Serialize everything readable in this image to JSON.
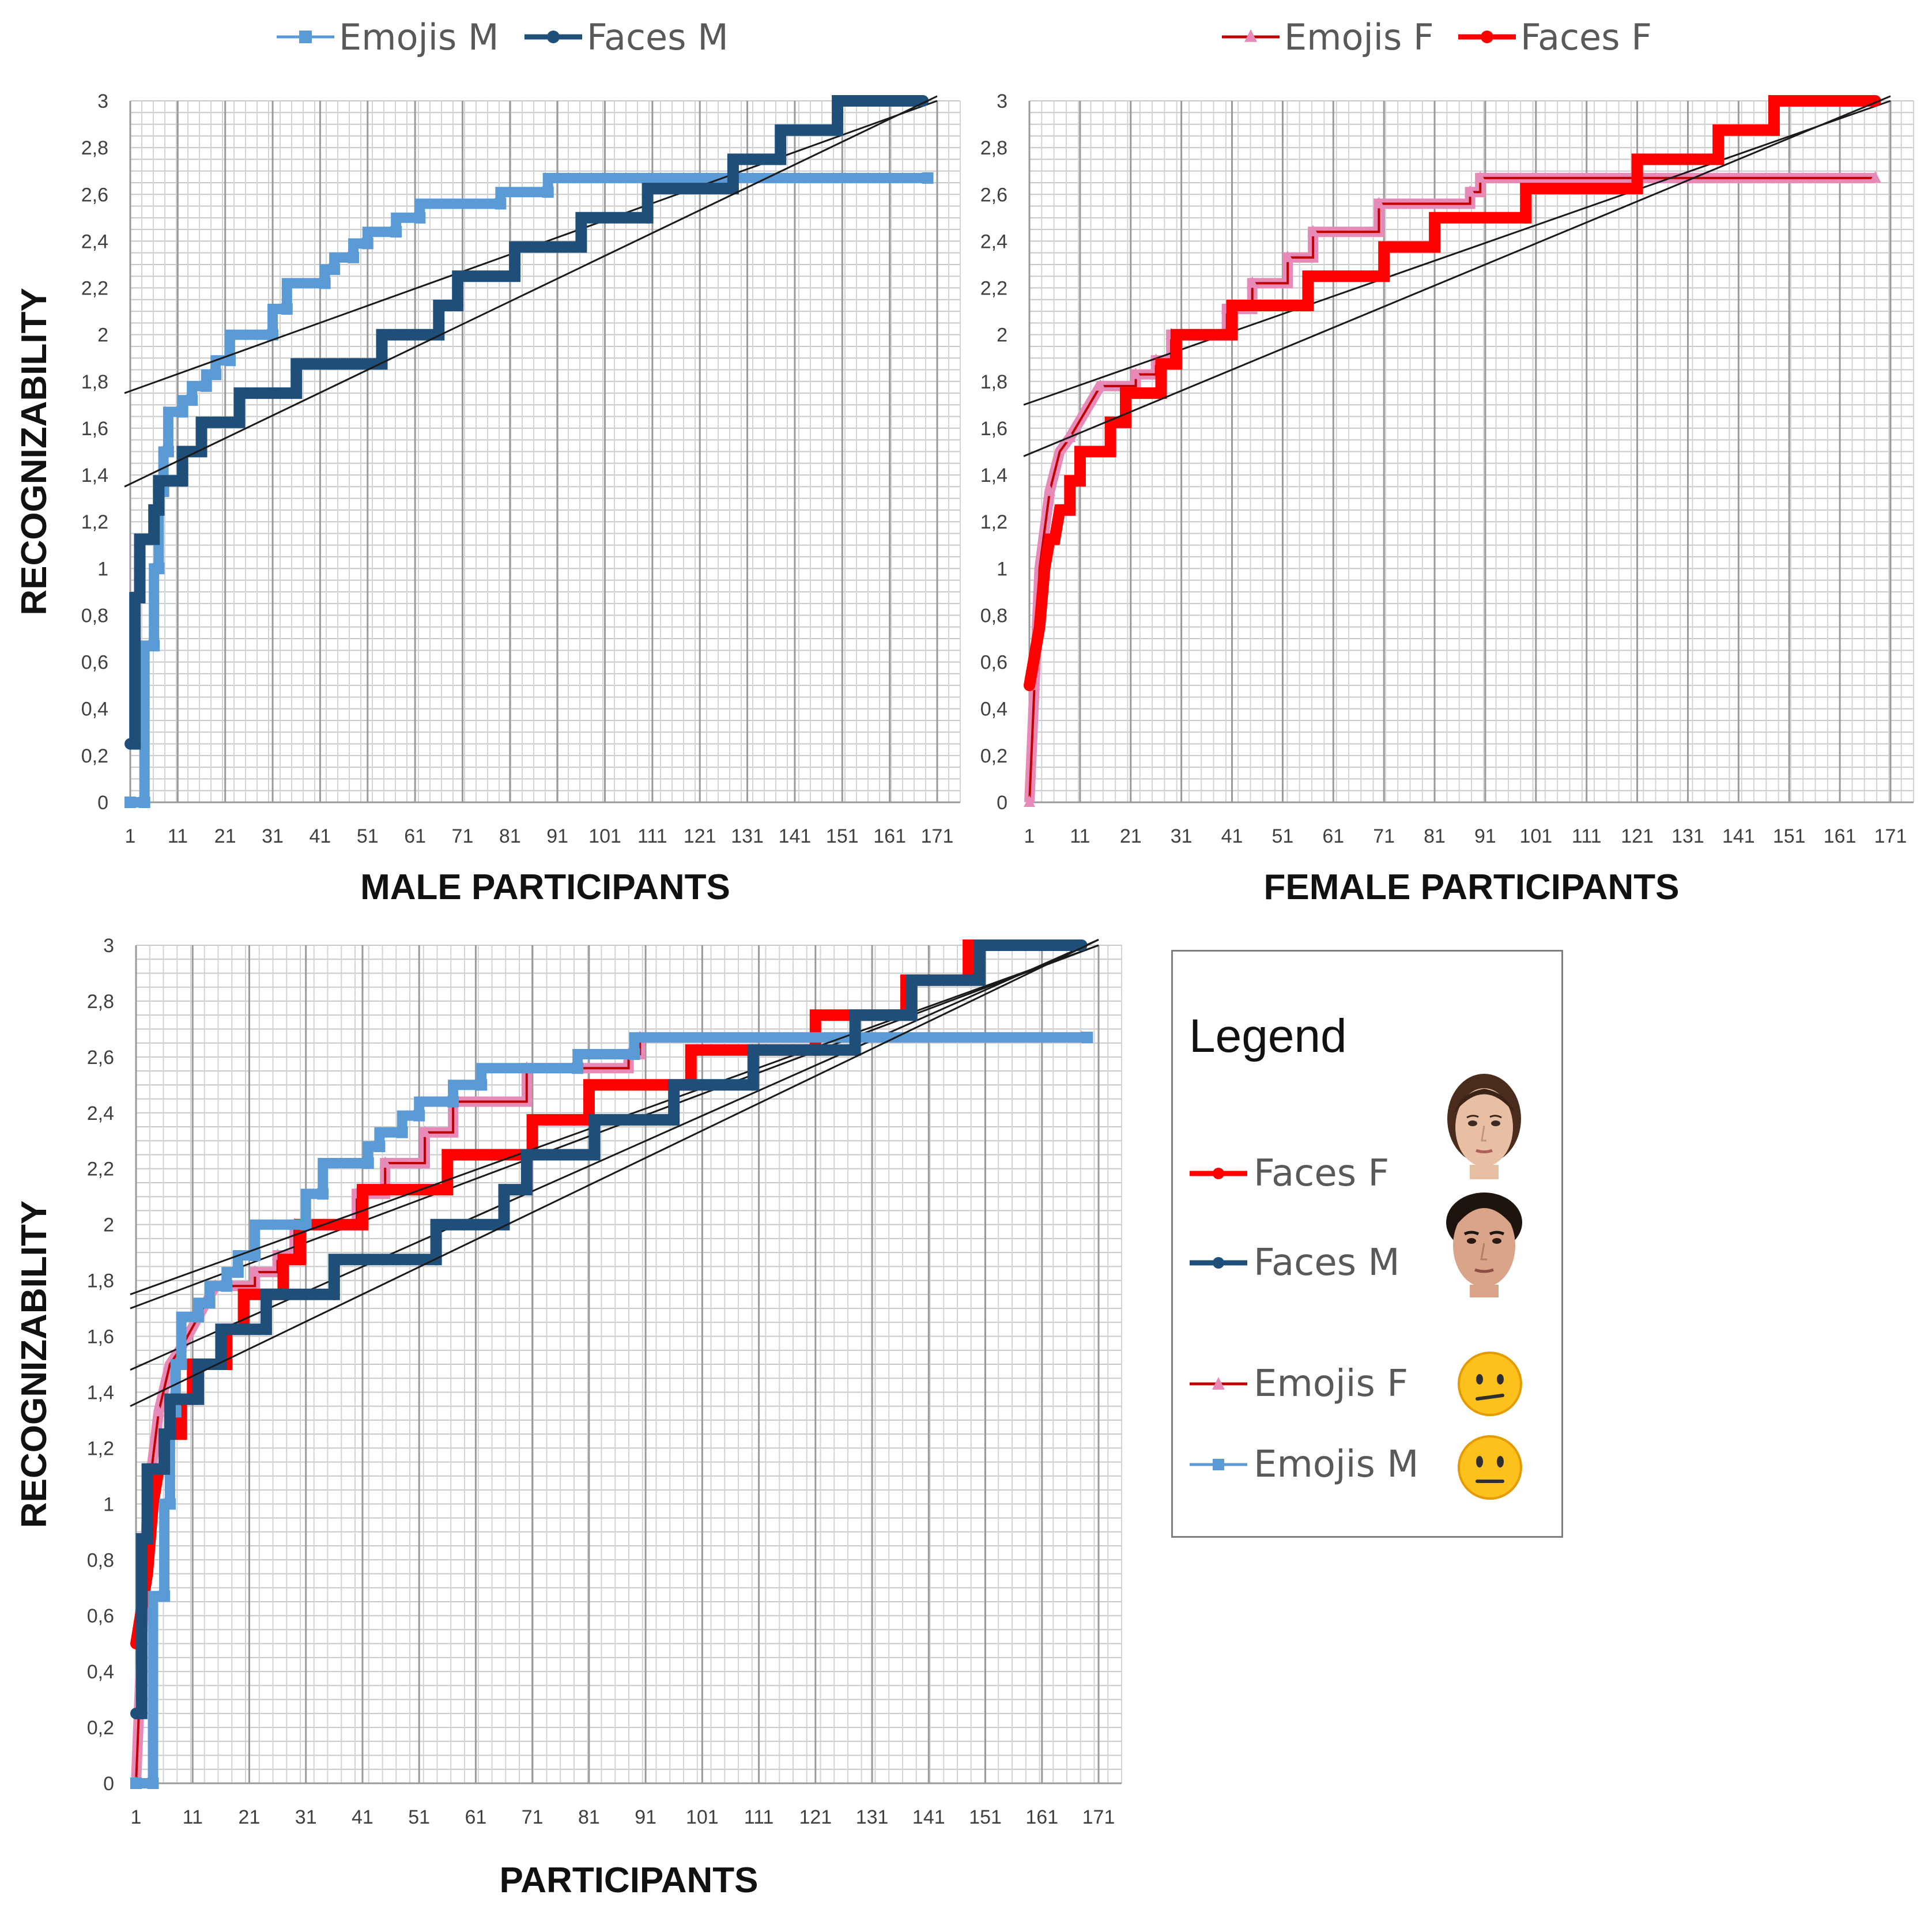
{
  "chart_data": [
    {
      "type": "line",
      "id": "male",
      "xlabel": "MALE PARTICIPANTS",
      "ylabel": "RECOGNIZABILITY",
      "ylim": [
        0,
        3
      ],
      "xlim": [
        1,
        171
      ],
      "yticks": [
        "0",
        "0,2",
        "0,4",
        "0,6",
        "0,8",
        "1",
        "1,2",
        "1,4",
        "1,6",
        "1,8",
        "2",
        "2,2",
        "2,4",
        "2,6",
        "2,8",
        "3"
      ],
      "xticks": [
        "1",
        "11",
        "21",
        "31",
        "41",
        "51",
        "61",
        "71",
        "81",
        "91",
        "101",
        "111",
        "121",
        "131",
        "141",
        "151",
        "161",
        "171"
      ],
      "legend": [
        "Emojis M",
        "Faces M"
      ],
      "series": [
        {
          "name": "Emojis M",
          "color": "#5b9bd5",
          "marker": "square",
          "points": [
            [
              1,
              0
            ],
            [
              4,
              0
            ],
            [
              4,
              0.67
            ],
            [
              6,
              0.67
            ],
            [
              6,
              1
            ],
            [
              7,
              1
            ],
            [
              7,
              1.33
            ],
            [
              8,
              1.33
            ],
            [
              8,
              1.5
            ],
            [
              9,
              1.5
            ],
            [
              9,
              1.67
            ],
            [
              12,
              1.67
            ],
            [
              12,
              1.72
            ],
            [
              14,
              1.72
            ],
            [
              14,
              1.78
            ],
            [
              17,
              1.78
            ],
            [
              17,
              1.83
            ],
            [
              19,
              1.83
            ],
            [
              19,
              1.89
            ],
            [
              22,
              1.89
            ],
            [
              22,
              2
            ],
            [
              31,
              2
            ],
            [
              31,
              2.11
            ],
            [
              34,
              2.11
            ],
            [
              34,
              2.22
            ],
            [
              42,
              2.22
            ],
            [
              42,
              2.28
            ],
            [
              44,
              2.28
            ],
            [
              44,
              2.33
            ],
            [
              48,
              2.33
            ],
            [
              48,
              2.39
            ],
            [
              51,
              2.39
            ],
            [
              51,
              2.44
            ],
            [
              57,
              2.44
            ],
            [
              57,
              2.5
            ],
            [
              62,
              2.5
            ],
            [
              62,
              2.56
            ],
            [
              79,
              2.56
            ],
            [
              79,
              2.61
            ],
            [
              89,
              2.61
            ],
            [
              89,
              2.67
            ],
            [
              169,
              2.67
            ]
          ],
          "trend": [
            [
              1,
              1.75
            ],
            [
              171,
              3.0
            ]
          ]
        },
        {
          "name": "Faces M",
          "color": "#1f4e79",
          "marker": "circle",
          "points": [
            [
              1,
              0.25
            ],
            [
              2,
              0.25
            ],
            [
              2,
              0.875
            ],
            [
              3,
              0.875
            ],
            [
              3,
              1.125
            ],
            [
              6,
              1.125
            ],
            [
              6,
              1.25
            ],
            [
              7,
              1.25
            ],
            [
              7,
              1.375
            ],
            [
              12,
              1.375
            ],
            [
              12,
              1.5
            ],
            [
              16,
              1.5
            ],
            [
              16,
              1.625
            ],
            [
              24,
              1.625
            ],
            [
              24,
              1.75
            ],
            [
              36,
              1.75
            ],
            [
              36,
              1.875
            ],
            [
              54,
              1.875
            ],
            [
              54,
              2.0
            ],
            [
              66,
              2.0
            ],
            [
              66,
              2.125
            ],
            [
              70,
              2.125
            ],
            [
              70,
              2.25
            ],
            [
              82,
              2.25
            ],
            [
              82,
              2.375
            ],
            [
              96,
              2.375
            ],
            [
              96,
              2.5
            ],
            [
              110,
              2.5
            ],
            [
              110,
              2.625
            ],
            [
              128,
              2.625
            ],
            [
              128,
              2.75
            ],
            [
              138,
              2.75
            ],
            [
              138,
              2.875
            ],
            [
              150,
              2.875
            ],
            [
              150,
              3.0
            ],
            [
              168,
              3.0
            ]
          ],
          "trend": [
            [
              1,
              1.35
            ],
            [
              171,
              3.02
            ]
          ]
        }
      ]
    },
    {
      "type": "line",
      "id": "female",
      "xlabel": "FEMALE PARTICIPANTS",
      "ylabel": "",
      "ylim": [
        0,
        3
      ],
      "xlim": [
        1,
        171
      ],
      "yticks": [
        "0",
        "0,2",
        "0,4",
        "0,6",
        "0,8",
        "1",
        "1,2",
        "1,4",
        "1,6",
        "1,8",
        "2",
        "2,2",
        "2,4",
        "2,6",
        "2,8",
        "3"
      ],
      "xticks": [
        "1",
        "11",
        "21",
        "31",
        "41",
        "51",
        "61",
        "71",
        "81",
        "91",
        "101",
        "111",
        "121",
        "131",
        "141",
        "151",
        "161",
        "171"
      ],
      "legend": [
        "Emojis F",
        "Faces F"
      ],
      "series": [
        {
          "name": "Emojis F",
          "color": "#e88ab8",
          "line_color": "#c00000",
          "marker": "triangle",
          "points": [
            [
              1,
              0
            ],
            [
              2,
              0.5
            ],
            [
              3,
              1
            ],
            [
              5,
              1.33
            ],
            [
              7,
              1.5
            ],
            [
              9,
              1.56
            ],
            [
              12,
              1.67
            ],
            [
              15,
              1.78
            ],
            [
              22,
              1.78
            ],
            [
              22,
              1.83
            ],
            [
              26,
              1.83
            ],
            [
              26,
              1.89
            ],
            [
              29,
              1.89
            ],
            [
              29,
              2
            ],
            [
              40,
              2
            ],
            [
              40,
              2.11
            ],
            [
              45,
              2.11
            ],
            [
              45,
              2.22
            ],
            [
              52,
              2.22
            ],
            [
              52,
              2.33
            ],
            [
              57,
              2.33
            ],
            [
              57,
              2.44
            ],
            [
              70,
              2.44
            ],
            [
              70,
              2.56
            ],
            [
              88,
              2.56
            ],
            [
              88,
              2.61
            ],
            [
              90,
              2.61
            ],
            [
              90,
              2.67
            ],
            [
              168,
              2.67
            ]
          ],
          "trend": [
            [
              1,
              1.7
            ],
            [
              171,
              3.0
            ]
          ]
        },
        {
          "name": "Faces F",
          "color": "#ff0000",
          "line_color": "#ff0000",
          "marker": "circle",
          "points": [
            [
              1,
              0.5
            ],
            [
              2,
              0.625
            ],
            [
              3,
              0.75
            ],
            [
              4,
              1.0
            ],
            [
              5,
              1.125
            ],
            [
              6,
              1.125
            ],
            [
              7,
              1.25
            ],
            [
              9,
              1.25
            ],
            [
              9,
              1.375
            ],
            [
              11,
              1.375
            ],
            [
              11,
              1.5
            ],
            [
              17,
              1.5
            ],
            [
              17,
              1.625
            ],
            [
              20,
              1.625
            ],
            [
              20,
              1.75
            ],
            [
              27,
              1.75
            ],
            [
              27,
              1.875
            ],
            [
              30,
              1.875
            ],
            [
              30,
              2.0
            ],
            [
              41,
              2.0
            ],
            [
              41,
              2.125
            ],
            [
              56,
              2.125
            ],
            [
              56,
              2.25
            ],
            [
              71,
              2.25
            ],
            [
              71,
              2.375
            ],
            [
              81,
              2.375
            ],
            [
              81,
              2.5
            ],
            [
              99,
              2.5
            ],
            [
              99,
              2.625
            ],
            [
              121,
              2.625
            ],
            [
              121,
              2.75
            ],
            [
              137,
              2.75
            ],
            [
              137,
              2.875
            ],
            [
              148,
              2.875
            ],
            [
              148,
              3.0
            ],
            [
              168,
              3.0
            ]
          ],
          "trend": [
            [
              1,
              1.48
            ],
            [
              171,
              3.02
            ]
          ]
        }
      ]
    },
    {
      "type": "line",
      "id": "combined",
      "xlabel": "PARTICIPANTS",
      "ylabel": "RECOGNIZABILITY",
      "ylim": [
        0,
        3
      ],
      "xlim": [
        1,
        171
      ],
      "yticks": [
        "0",
        "0,2",
        "0,4",
        "0,6",
        "0,8",
        "1",
        "1,2",
        "1,4",
        "1,6",
        "1,8",
        "2",
        "2,2",
        "2,4",
        "2,6",
        "2,8",
        "3"
      ],
      "xticks": [
        "1",
        "11",
        "21",
        "31",
        "41",
        "51",
        "61",
        "71",
        "81",
        "91",
        "101",
        "111",
        "121",
        "131",
        "141",
        "151",
        "161",
        "171"
      ],
      "series_refs": [
        "Emojis F",
        "Faces F",
        "Emojis M",
        "Faces M"
      ]
    }
  ],
  "legend_panel": {
    "title": "Legend",
    "entries": [
      {
        "label": "Faces F",
        "color": "#ff0000",
        "marker": "circle",
        "picture": "female-face"
      },
      {
        "label": "Faces M",
        "color": "#1f4e79",
        "marker": "circle",
        "picture": "male-face"
      },
      {
        "label": "Emojis F",
        "color": "#e88ab8",
        "marker": "triangle",
        "picture": "confused-emoji"
      },
      {
        "label": "Emojis M",
        "color": "#5b9bd5",
        "marker": "square",
        "picture": "neutral-emoji"
      }
    ]
  }
}
